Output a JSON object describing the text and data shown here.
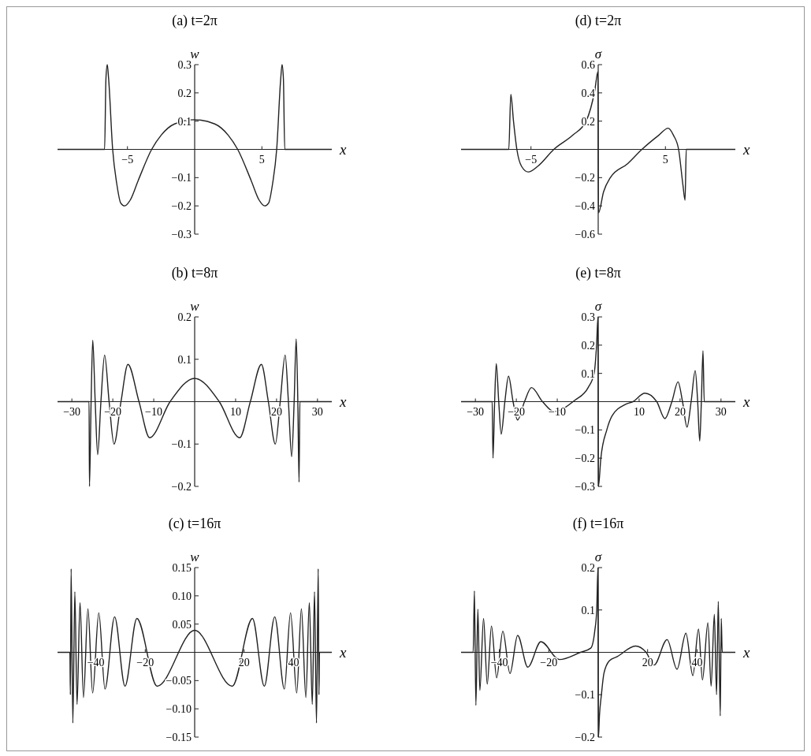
{
  "chart_data": [
    {
      "type": "line",
      "title": "(a) t=2π",
      "xlabel": "x",
      "ylabel": "w",
      "xlim": [
        -10.2,
        10.2
      ],
      "ylim": [
        -0.3,
        0.3
      ],
      "xticks": [
        {
          "value": -5,
          "label": "−5"
        },
        5
      ],
      "yticks": [
        {
          "value": -0.3,
          "label": "−0.3"
        },
        {
          "value": -0.2,
          "label": "−0.2"
        },
        {
          "value": -0.1,
          "label": "−0.1"
        },
        0.1,
        0.2,
        0.3
      ],
      "color": "#222222",
      "x": [
        -10.2,
        -6.7,
        -6.6,
        -6.5,
        -6.4,
        -6.1,
        -5.8,
        -5.5,
        -5.2,
        -4.8,
        -4.2,
        -3.2,
        -2.5,
        -1.5,
        0,
        1.5,
        2.5,
        3.2,
        4.2,
        4.8,
        5.2,
        5.5,
        5.8,
        6.1,
        6.4,
        6.5,
        6.6,
        6.7,
        10.2
      ],
      "values": [
        0,
        0,
        0.25,
        0.3,
        0.25,
        0,
        -0.12,
        -0.19,
        -0.2,
        -0.18,
        -0.11,
        0,
        0.05,
        0.09,
        0.105,
        0.09,
        0.05,
        0,
        -0.11,
        -0.18,
        -0.2,
        -0.19,
        -0.12,
        0,
        0.25,
        0.3,
        0.25,
        0,
        0
      ]
    },
    {
      "type": "line",
      "title": "(d) t=2π",
      "xlabel": "x",
      "ylabel": "σ",
      "xlim": [
        -10.2,
        10.2
      ],
      "ylim": [
        -0.6,
        0.6
      ],
      "xticks": [
        {
          "value": -5,
          "label": "−5"
        },
        5
      ],
      "yticks": [
        {
          "value": -0.6,
          "label": "−0.6"
        },
        {
          "value": -0.4,
          "label": "−0.4"
        },
        {
          "value": -0.2,
          "label": "−0.2"
        },
        0.2,
        0.4,
        0.6
      ],
      "color": "#222222",
      "x": [
        -10.2,
        -6.65,
        -6.5,
        -6.3,
        -6.05,
        -5.7,
        -5.2,
        -4.5,
        -3.3,
        -1.9,
        -0.9,
        -0.25,
        -0.02,
        0.02,
        0.4,
        0.9,
        2.2,
        3.25,
        4.5,
        5.2,
        5.6,
        5.98,
        6.3,
        6.46,
        6.55,
        10.2
      ],
      "values": [
        0,
        0,
        0.39,
        0.2,
        0,
        -0.12,
        -0.16,
        -0.12,
        0,
        0.1,
        0.2,
        0.42,
        0.55,
        -0.45,
        -0.3,
        -0.2,
        -0.1,
        0,
        0.1,
        0.15,
        0.1,
        0,
        -0.25,
        -0.36,
        0,
        0
      ]
    },
    {
      "type": "line",
      "title": "(b) t=8π",
      "xlabel": "x",
      "ylabel": "w",
      "xlim": [
        -33.5,
        33.5
      ],
      "ylim": [
        -0.2,
        0.2
      ],
      "xticks": [
        {
          "value": -30,
          "label": "−30"
        },
        {
          "value": -20,
          "label": "−20"
        },
        {
          "value": -10,
          "label": "−10"
        },
        10,
        20,
        30
      ],
      "yticks": [
        {
          "value": -0.2,
          "label": "−0.2"
        },
        {
          "value": -0.1,
          "label": "−0.1"
        },
        0.1,
        0.2
      ],
      "color": "#222222",
      "x": [
        -33.5,
        -25.8,
        -25.7,
        -25.3,
        -24.9,
        -24.3,
        -23.7,
        -22.9,
        -22,
        -20.9,
        -19.7,
        -18,
        -16.3,
        -13.6,
        -11,
        -6,
        0,
        6,
        11,
        13.6,
        16.3,
        18,
        19.7,
        20.9,
        22.1,
        22.9,
        23.7,
        24.3,
        24.8,
        25.2,
        25.5,
        25.7,
        33.5
      ],
      "values": [
        0,
        0,
        -0.2,
        0,
        0.145,
        0,
        -0.125,
        0,
        0.11,
        0,
        -0.1,
        0,
        0.088,
        0,
        -0.085,
        0,
        0.055,
        0,
        -0.085,
        0,
        0.088,
        0,
        -0.1,
        0,
        0.11,
        0,
        -0.13,
        0,
        0.148,
        0,
        -0.19,
        0,
        0
      ]
    },
    {
      "type": "line",
      "title": "(e) t=8π",
      "xlabel": "x",
      "ylabel": "σ",
      "xlim": [
        -33.5,
        33.5
      ],
      "ylim": [
        -0.3,
        0.3
      ],
      "xticks": [
        {
          "value": -30,
          "label": "−30"
        },
        {
          "value": -20,
          "label": "−20"
        },
        {
          "value": -10,
          "label": "−10"
        },
        10,
        20,
        30
      ],
      "yticks": [
        {
          "value": -0.3,
          "label": "−0.3"
        },
        {
          "value": -0.2,
          "label": "−0.2"
        },
        {
          "value": -0.1,
          "label": "−0.1"
        },
        0.1,
        0.2,
        0.3
      ],
      "color": "#222222",
      "x": [
        -33.5,
        -25.9,
        -25.7,
        -25.3,
        -24.9,
        -24.3,
        -23.7,
        -22.8,
        -21.9,
        -20.8,
        -19.7,
        -18,
        -16.3,
        -13.6,
        -10.8,
        -5.7,
        -2.45,
        -1,
        -0.4,
        -0.05,
        0.05,
        0.65,
        2.1,
        3.4,
        6.6,
        8.5,
        11.4,
        14.3,
        16.3,
        18,
        19.5,
        20.6,
        21.7,
        22.7,
        23.7,
        24.3,
        24.8,
        25.2,
        25.6,
        25.9,
        33.5
      ],
      "values": [
        0,
        0,
        -0.2,
        0,
        0.135,
        0,
        -0.115,
        0,
        0.09,
        0,
        -0.065,
        0,
        0.05,
        0,
        -0.035,
        0.005,
        0.05,
        0.1,
        0.2,
        0.3,
        -0.3,
        -0.2,
        -0.1,
        -0.05,
        -0.01,
        0,
        0.03,
        0,
        -0.06,
        0,
        0.07,
        0,
        -0.09,
        0,
        0.11,
        0,
        -0.14,
        0,
        0.18,
        0,
        0
      ]
    },
    {
      "type": "line",
      "title": "(c) t=16π",
      "xlabel": "x",
      "ylabel": "w",
      "xlim": [
        -55.5,
        55.5
      ],
      "ylim": [
        -0.15,
        0.15
      ],
      "xticks": [
        {
          "value": -40,
          "label": "−40"
        },
        {
          "value": -20,
          "label": "−20"
        },
        20,
        40
      ],
      "yticks": [
        {
          "value": -0.15,
          "label": "−0.15"
        },
        {
          "value": -0.1,
          "label": "−0.10"
        },
        {
          "value": -0.05,
          "label": "−0.05"
        },
        {
          "value": 0.05,
          "label": "0.05"
        },
        {
          "value": 0.1,
          "label": "0.10"
        },
        {
          "value": 0.15,
          "label": "0.15"
        }
      ],
      "color": "#222222",
      "x": [
        -55.5,
        -50.5,
        -50.3,
        -50,
        -49.3,
        -48.5,
        -47.6,
        -46.4,
        -45,
        -43.2,
        -41.3,
        -38.8,
        -36.3,
        -32.4,
        -28.2,
        -23.4,
        -15.2,
        0,
        15.2,
        23.4,
        28.2,
        32.4,
        36.3,
        38.8,
        41.3,
        43.2,
        45,
        46.4,
        47.6,
        48.5,
        49.3,
        50,
        50.3,
        50.5,
        55.5
      ],
      "values": [
        0,
        0,
        -0.075,
        0.148,
        -0.125,
        0.107,
        -0.092,
        0.088,
        -0.08,
        0.077,
        -0.072,
        0.07,
        -0.065,
        0.063,
        -0.06,
        0.06,
        -0.06,
        0.039,
        -0.06,
        0.06,
        -0.06,
        0.063,
        -0.065,
        0.07,
        -0.072,
        0.077,
        -0.08,
        0.088,
        -0.092,
        0.107,
        -0.125,
        0.148,
        -0.075,
        0,
        0
      ]
    },
    {
      "type": "line",
      "title": "(f) t=16π",
      "xlabel": "x",
      "ylabel": "σ",
      "xlim": [
        -55.5,
        55.5
      ],
      "ylim": [
        -0.2,
        0.2
      ],
      "xticks": [
        {
          "value": -40,
          "label": "−40"
        },
        {
          "value": -20,
          "label": "−20"
        },
        20,
        40
      ],
      "yticks": [
        {
          "value": -0.2,
          "label": "−0.2"
        },
        {
          "value": -0.1,
          "label": "−0.1"
        },
        0.1,
        0.2
      ],
      "color": "#222222",
      "x": [
        -55.5,
        -50.6,
        -50.1,
        -49.5,
        -48.7,
        -47.9,
        -46.4,
        -44.9,
        -43.2,
        -41.1,
        -38.6,
        -35.7,
        -32.6,
        -28.5,
        -23.2,
        -15.7,
        -7.2,
        -3,
        -1.4,
        -0.6,
        -0.1,
        0.1,
        0.5,
        1.3,
        2.3,
        4.5,
        7.7,
        15.1,
        19.4,
        22.6,
        27.9,
        31.9,
        35.5,
        38.3,
        40.6,
        42.2,
        44.4,
        45.7,
        47,
        47.9,
        48.6,
        49.4,
        49.8,
        50.2,
        55.5
      ],
      "values": [
        0,
        0,
        0.145,
        -0.125,
        0.102,
        -0.09,
        0.08,
        -0.075,
        0.062,
        -0.06,
        0.05,
        -0.05,
        0.04,
        -0.035,
        0.025,
        -0.017,
        0,
        0.01,
        0.05,
        0.1,
        0.2,
        -0.2,
        -0.15,
        -0.1,
        -0.05,
        -0.02,
        -0.01,
        0.015,
        0,
        -0.03,
        0.03,
        -0.04,
        0.045,
        -0.055,
        0.055,
        -0.065,
        0.07,
        -0.08,
        0.09,
        -0.1,
        0.12,
        -0.15,
        0.08,
        0,
        0
      ]
    }
  ]
}
